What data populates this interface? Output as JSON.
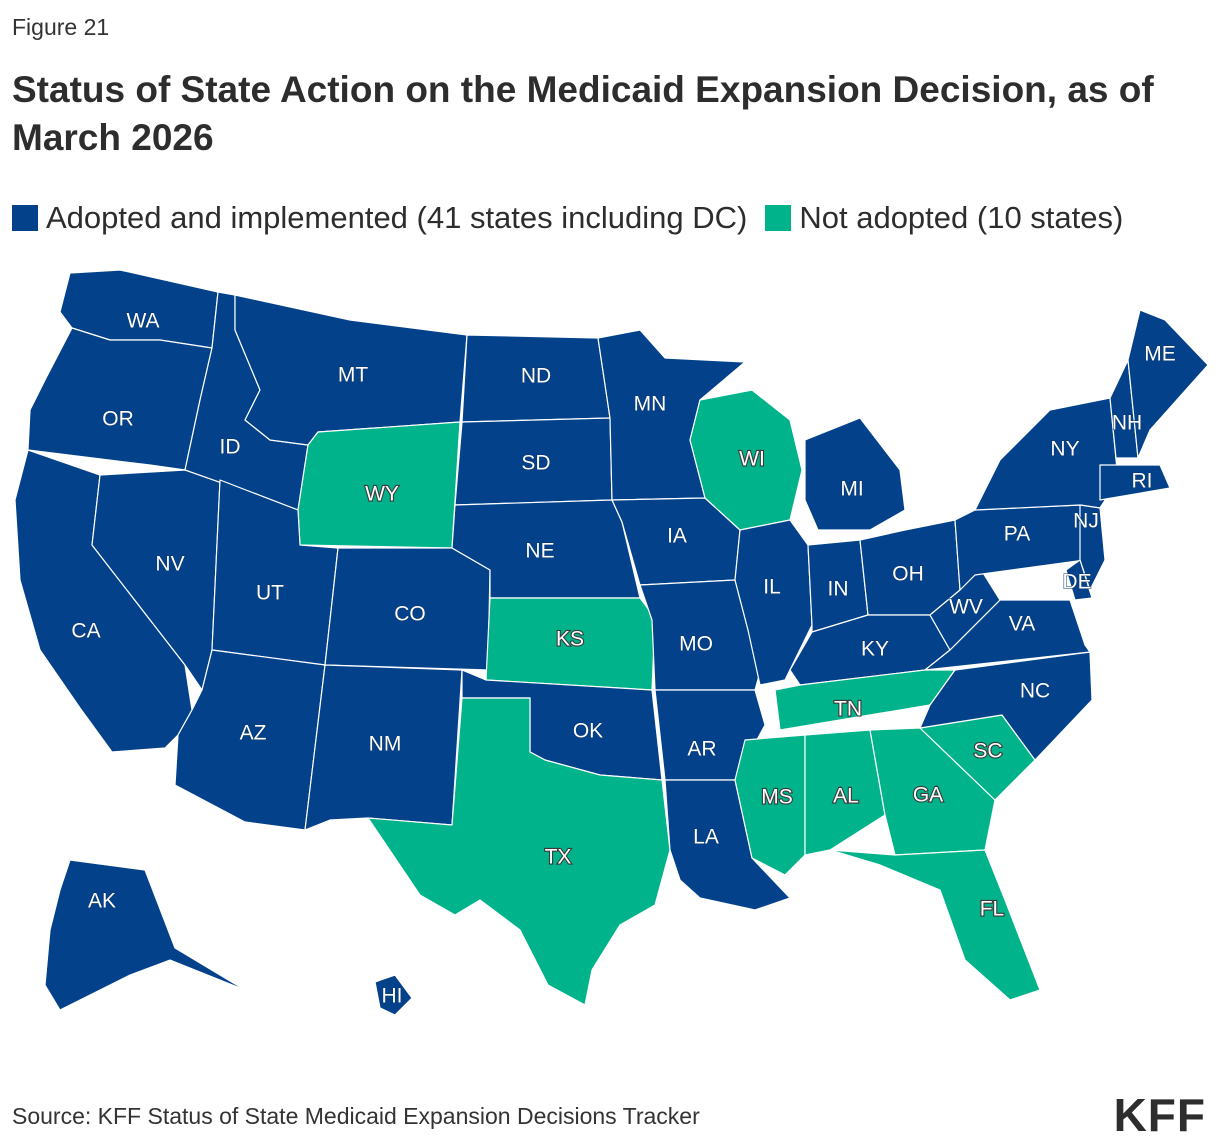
{
  "figure_label": "Figure 21",
  "title": "Status of State Action on the Medicaid Expansion Decision, as of March 2026",
  "legend": [
    {
      "key": "adopted",
      "label": "Adopted and implemented (41 states including DC)",
      "color": "#03428a"
    },
    {
      "key": "not",
      "label": "Not adopted (10 states)",
      "color": "#00b38a"
    }
  ],
  "source": "Source: KFF Status of State Medicaid Expansion Decisions Tracker",
  "logo": "KFF",
  "states": [
    {
      "abbr": "WA",
      "status": "adopted"
    },
    {
      "abbr": "OR",
      "status": "adopted"
    },
    {
      "abbr": "CA",
      "status": "adopted"
    },
    {
      "abbr": "NV",
      "status": "adopted"
    },
    {
      "abbr": "ID",
      "status": "adopted"
    },
    {
      "abbr": "MT",
      "status": "adopted"
    },
    {
      "abbr": "WY",
      "status": "not"
    },
    {
      "abbr": "UT",
      "status": "adopted"
    },
    {
      "abbr": "AZ",
      "status": "adopted"
    },
    {
      "abbr": "CO",
      "status": "adopted"
    },
    {
      "abbr": "NM",
      "status": "adopted"
    },
    {
      "abbr": "ND",
      "status": "adopted"
    },
    {
      "abbr": "SD",
      "status": "adopted"
    },
    {
      "abbr": "NE",
      "status": "adopted"
    },
    {
      "abbr": "KS",
      "status": "not"
    },
    {
      "abbr": "OK",
      "status": "adopted"
    },
    {
      "abbr": "TX",
      "status": "not"
    },
    {
      "abbr": "MN",
      "status": "adopted"
    },
    {
      "abbr": "IA",
      "status": "adopted"
    },
    {
      "abbr": "MO",
      "status": "adopted"
    },
    {
      "abbr": "AR",
      "status": "adopted"
    },
    {
      "abbr": "LA",
      "status": "adopted"
    },
    {
      "abbr": "WI",
      "status": "not"
    },
    {
      "abbr": "IL",
      "status": "adopted"
    },
    {
      "abbr": "MI",
      "status": "adopted"
    },
    {
      "abbr": "IN",
      "status": "adopted"
    },
    {
      "abbr": "OH",
      "status": "adopted"
    },
    {
      "abbr": "KY",
      "status": "adopted"
    },
    {
      "abbr": "TN",
      "status": "not"
    },
    {
      "abbr": "MS",
      "status": "not"
    },
    {
      "abbr": "AL",
      "status": "not"
    },
    {
      "abbr": "GA",
      "status": "not"
    },
    {
      "abbr": "FL",
      "status": "not"
    },
    {
      "abbr": "SC",
      "status": "not"
    },
    {
      "abbr": "NC",
      "status": "adopted"
    },
    {
      "abbr": "VA",
      "status": "adopted"
    },
    {
      "abbr": "WV",
      "status": "adopted"
    },
    {
      "abbr": "PA",
      "status": "adopted"
    },
    {
      "abbr": "NY",
      "status": "adopted"
    },
    {
      "abbr": "NJ",
      "status": "adopted"
    },
    {
      "abbr": "DE",
      "status": "adopted"
    },
    {
      "abbr": "NH",
      "status": "adopted"
    },
    {
      "abbr": "ME",
      "status": "adopted"
    },
    {
      "abbr": "RI",
      "status": "adopted"
    },
    {
      "abbr": "AK",
      "status": "adopted"
    },
    {
      "abbr": "HI",
      "status": "adopted"
    }
  ]
}
